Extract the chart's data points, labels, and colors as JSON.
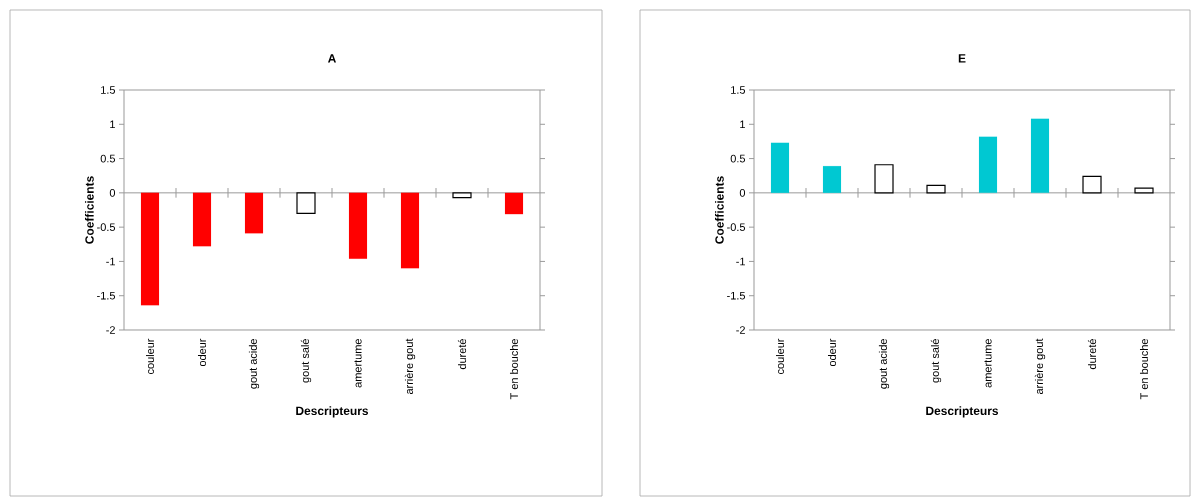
{
  "chart_data": [
    {
      "type": "bar",
      "title": "A",
      "xlabel": "Descripteurs",
      "ylabel": "Coefficients",
      "categories": [
        "couleur",
        "odeur",
        "gout acide",
        "gout salé",
        "amertume",
        "arrière gout",
        "dureté",
        "T en bouche"
      ],
      "values": [
        -1.64,
        -0.78,
        -0.59,
        -0.3,
        -0.96,
        -1.1,
        -0.07,
        -0.31
      ],
      "colors": [
        "#ff0000",
        "#ff0000",
        "#ff0000",
        "#ffffff",
        "#ff0000",
        "#ff0000",
        "#ffffff",
        "#ff0000"
      ],
      "ylim": [
        -2,
        1.5
      ],
      "yticks": [
        -2,
        -1.5,
        -1,
        -0.5,
        0,
        0.5,
        1,
        1.5
      ]
    },
    {
      "type": "bar",
      "title": "E",
      "xlabel": "Descripteurs",
      "ylabel": "Coefficients",
      "categories": [
        "couleur",
        "odeur",
        "gout acide",
        "gout salé",
        "amertume",
        "arrière gout",
        "dureté",
        "T en bouche"
      ],
      "values": [
        0.73,
        0.39,
        0.41,
        0.11,
        0.82,
        1.08,
        0.24,
        0.07
      ],
      "colors": [
        "#00c8d2",
        "#00c8d2",
        "#ffffff",
        "#ffffff",
        "#00c8d2",
        "#00c8d2",
        "#ffffff",
        "#ffffff"
      ],
      "ylim": [
        -2,
        1.5
      ],
      "yticks": [
        -2,
        -1.5,
        -1,
        -0.5,
        0,
        0.5,
        1,
        1.5
      ]
    }
  ]
}
